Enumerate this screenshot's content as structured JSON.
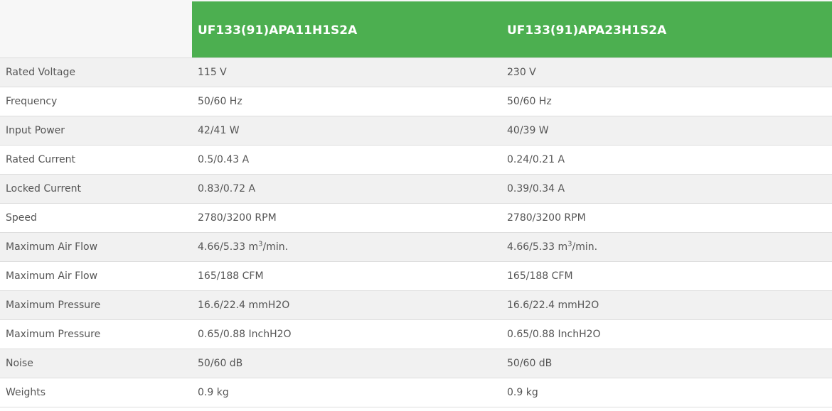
{
  "header": {
    "empty": "",
    "models": [
      "UF133(91)APA11H1S2A",
      "UF133(91)APA23H1S2A"
    ]
  },
  "colors": {
    "header_green": "#4caf50",
    "row_alt": "#f1f1f1"
  },
  "rows": [
    {
      "label": "Rated Voltage",
      "values": [
        [
          "115 V"
        ],
        [
          "230 V"
        ]
      ]
    },
    {
      "label": "Frequency",
      "values": [
        [
          "50/60 Hz"
        ],
        [
          "50/60 Hz"
        ]
      ]
    },
    {
      "label": "Input Power",
      "values": [
        [
          "42/41 W"
        ],
        [
          "40/39 W"
        ]
      ]
    },
    {
      "label": "Rated Current",
      "values": [
        [
          "0.5/0.43 A"
        ],
        [
          "0.24/0.21 A"
        ]
      ]
    },
    {
      "label": "Locked Current",
      "values": [
        [
          "0.83/0.72 A"
        ],
        [
          "0.39/0.34 A"
        ]
      ]
    },
    {
      "label": "Speed",
      "values": [
        [
          "2780/3200 RPM"
        ],
        [
          "2780/3200 RPM"
        ]
      ]
    },
    {
      "label": "Maximum Air Flow",
      "values": [
        [
          "4.66/5.33 m",
          "3",
          "/min."
        ],
        [
          "4.66/5.33 m",
          "3",
          "/min."
        ]
      ]
    },
    {
      "label": "Maximum Air Flow",
      "values": [
        [
          "165/188 CFM"
        ],
        [
          "165/188 CFM"
        ]
      ]
    },
    {
      "label": "Maximum Pressure",
      "values": [
        [
          "16.6/22.4 mmH2O"
        ],
        [
          "16.6/22.4 mmH2O"
        ]
      ]
    },
    {
      "label": "Maximum Pressure",
      "values": [
        [
          "0.65/0.88 InchH2O"
        ],
        [
          "0.65/0.88 InchH2O"
        ]
      ]
    },
    {
      "label": "Noise",
      "values": [
        [
          "50/60 dB"
        ],
        [
          "50/60 dB"
        ]
      ]
    },
    {
      "label": "Weights",
      "values": [
        [
          "0.9 kg"
        ],
        [
          "0.9 kg"
        ]
      ]
    }
  ]
}
